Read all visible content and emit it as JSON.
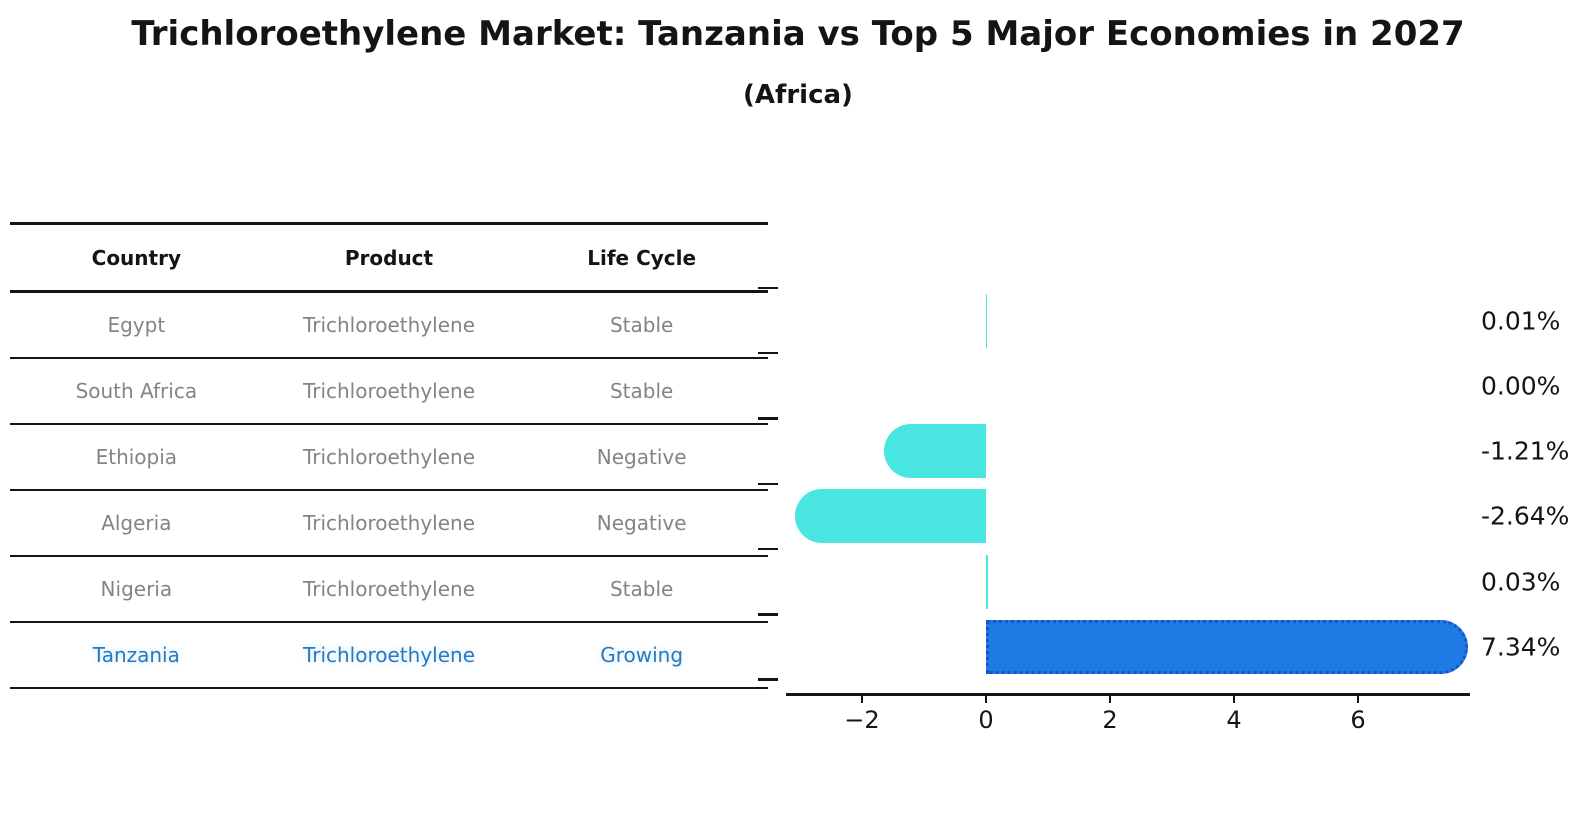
{
  "header": {
    "title": "Trichloroethylene Market: Tanzania vs Top 5 Major Economies in 2027",
    "subtitle": "(Africa)"
  },
  "table": {
    "columns": [
      "Country",
      "Product",
      "Life Cycle"
    ],
    "rows": [
      {
        "country": "Egypt",
        "product": "Trichloroethylene",
        "life_cycle": "Stable",
        "highlight": false
      },
      {
        "country": "South Africa",
        "product": "Trichloroethylene",
        "life_cycle": "Stable",
        "highlight": false
      },
      {
        "country": "Ethiopia",
        "product": "Trichloroethylene",
        "life_cycle": "Negative",
        "highlight": false
      },
      {
        "country": "Algeria",
        "product": "Trichloroethylene",
        "life_cycle": "Negative",
        "highlight": false
      },
      {
        "country": "Nigeria",
        "product": "Trichloroethylene",
        "life_cycle": "Stable",
        "highlight": false
      },
      {
        "country": "Tanzania",
        "product": "Trichloroethylene",
        "life_cycle": "Growing",
        "highlight": true
      }
    ]
  },
  "chart_data": {
    "type": "bar",
    "orientation": "horizontal",
    "title": "Trichloroethylene Market: Tanzania vs Top 5 Major Economies in 2027 (Africa)",
    "categories": [
      "Egypt",
      "South Africa",
      "Ethiopia",
      "Algeria",
      "Nigeria",
      "Tanzania"
    ],
    "values": [
      0.01,
      0.0,
      -1.21,
      -2.64,
      0.03,
      7.34
    ],
    "value_labels": [
      "0.01%",
      "0.00%",
      "-1.21%",
      "-2.64%",
      "0.03%",
      "7.34%"
    ],
    "unit": "percent",
    "x_ticks": [
      -2,
      0,
      2,
      4,
      6
    ],
    "x_tick_labels": [
      "−2",
      "0",
      "2",
      "4",
      "6"
    ],
    "xlim": [
      -3.2,
      7.8
    ],
    "grid": false,
    "legend": false,
    "highlight_index": 5,
    "colors": {
      "bar_default": "#48E5E1",
      "bar_highlight": "#1F7BE4",
      "bar_highlight_border": "#1A52CC",
      "highlight_text": "#2879BD",
      "text": "#141414",
      "muted_text": "#848484"
    }
  }
}
